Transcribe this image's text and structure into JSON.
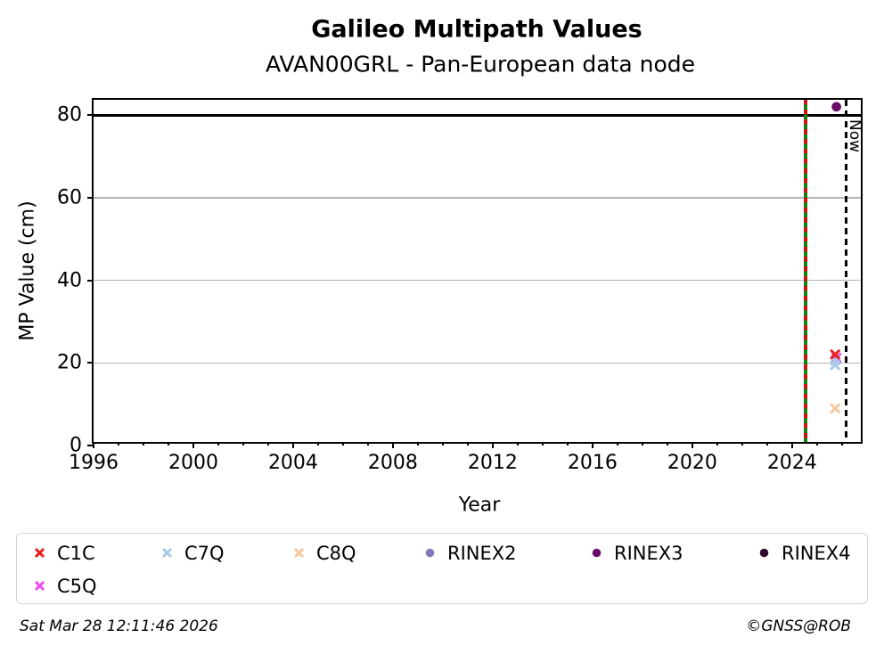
{
  "footer": {
    "timestamp": "Sat Mar 28 12:11:46 2026",
    "credit": "©GNSS@ROB"
  },
  "legend": {
    "items": [
      "C1C",
      "C7Q",
      "C8Q",
      "RINEX2",
      "RINEX3",
      "RINEX4",
      "C5Q"
    ]
  },
  "chart_data": {
    "type": "scatter",
    "title": "Galileo Multipath Values",
    "subtitle": "AVAN00GRL - Pan-European data node",
    "xlabel": "Year",
    "ylabel": "MP Value (cm)",
    "xlim": [
      1996,
      2026.9
    ],
    "ylim": [
      0,
      83.7
    ],
    "x_major_ticks": [
      1996,
      2000,
      2004,
      2008,
      2012,
      2016,
      2020,
      2024
    ],
    "x_minor_step": 1,
    "y_ticks": [
      0,
      20,
      40,
      60,
      80
    ],
    "grid_y": [
      20,
      40,
      60
    ],
    "grid_color": "#b4b4b4",
    "hline": {
      "y": 80,
      "color": "#000000"
    },
    "event_line": {
      "x": 2024.55,
      "color_dash": "#cc1212",
      "color_line": "#0c850c"
    },
    "now_line": {
      "x": 2026.16,
      "label": "Now",
      "color": "#000000"
    },
    "series": [
      {
        "name": "C5Q",
        "marker": "x",
        "color": "#ed4bed",
        "points": [
          {
            "x": 2026.0,
            "y": 20.6
          }
        ]
      },
      {
        "name": "C7Q",
        "marker": "x",
        "color": "#a9c9e8",
        "points": [
          {
            "x": 2025.95,
            "y": 19.9
          },
          {
            "x": 2025.95,
            "y": 18.8
          }
        ]
      },
      {
        "name": "C8Q",
        "marker": "x",
        "color": "#f6c79f",
        "points": [
          {
            "x": 2025.95,
            "y": 8.2
          }
        ]
      },
      {
        "name": "C1C",
        "marker": "x",
        "color": "#e8211c",
        "points": [
          {
            "x": 2025.95,
            "y": 21.4
          }
        ]
      },
      {
        "name": "RINEX2",
        "marker": "circle",
        "color": "#8079ba",
        "points": []
      },
      {
        "name": "RINEX3",
        "marker": "circle",
        "color": "#6a0d6a",
        "points": [
          {
            "x": 2026.0,
            "y": 82.0
          }
        ]
      },
      {
        "name": "RINEX4",
        "marker": "circle",
        "color": "#300a30",
        "points": []
      }
    ]
  }
}
